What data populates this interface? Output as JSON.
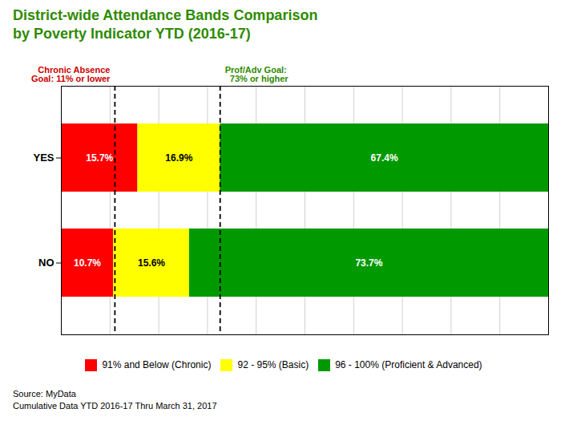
{
  "chart_data": {
    "type": "bar",
    "orientation": "horizontal",
    "stacked": true,
    "title": "District-wide Attendance Bands Comparison",
    "subtitle": "by Poverty Indicator YTD (2016-17)",
    "color": "#2E8B00",
    "caption": "Source: MyData\nCumulative Data YTD 2016-17 Thru March 31, 2017",
    "categories": [
      "YES",
      "NO"
    ],
    "series": [
      {
        "name": "91% and Below (Chronic)",
        "color": "#FF0000",
        "values": [
          15.7,
          10.7
        ],
        "value_labels": [
          "15.7%",
          "10.7%"
        ]
      },
      {
        "name": "92 - 95% (Basic)",
        "color": "#FFFF00",
        "values": [
          16.9,
          15.6
        ],
        "value_labels": [
          "16.9%",
          "15.6%"
        ]
      },
      {
        "name": "96 - 100% (Proficient & Advanced)",
        "color": "#009900",
        "values": [
          67.4,
          73.7
        ],
        "value_labels": [
          "67.4%",
          "73.7%"
        ]
      }
    ],
    "xlim": [
      0,
      100
    ],
    "xticks": [
      0,
      10,
      20,
      30,
      40,
      50,
      60,
      70,
      80,
      90,
      100
    ],
    "grid": true,
    "tick_labels": "y",
    "data_labels": true,
    "legend": "bottom",
    "annotations": [
      {
        "x": 11.0,
        "text": "Chronic Absence\nGoal: 11% or lower",
        "color": "#CC0000",
        "line_style": "dashed"
      },
      {
        "x": 32.6,
        "text": "Prof/Adv Goal:\n  73% or higher",
        "color": "#2E8B00",
        "line_style": "dashed"
      }
    ]
  }
}
